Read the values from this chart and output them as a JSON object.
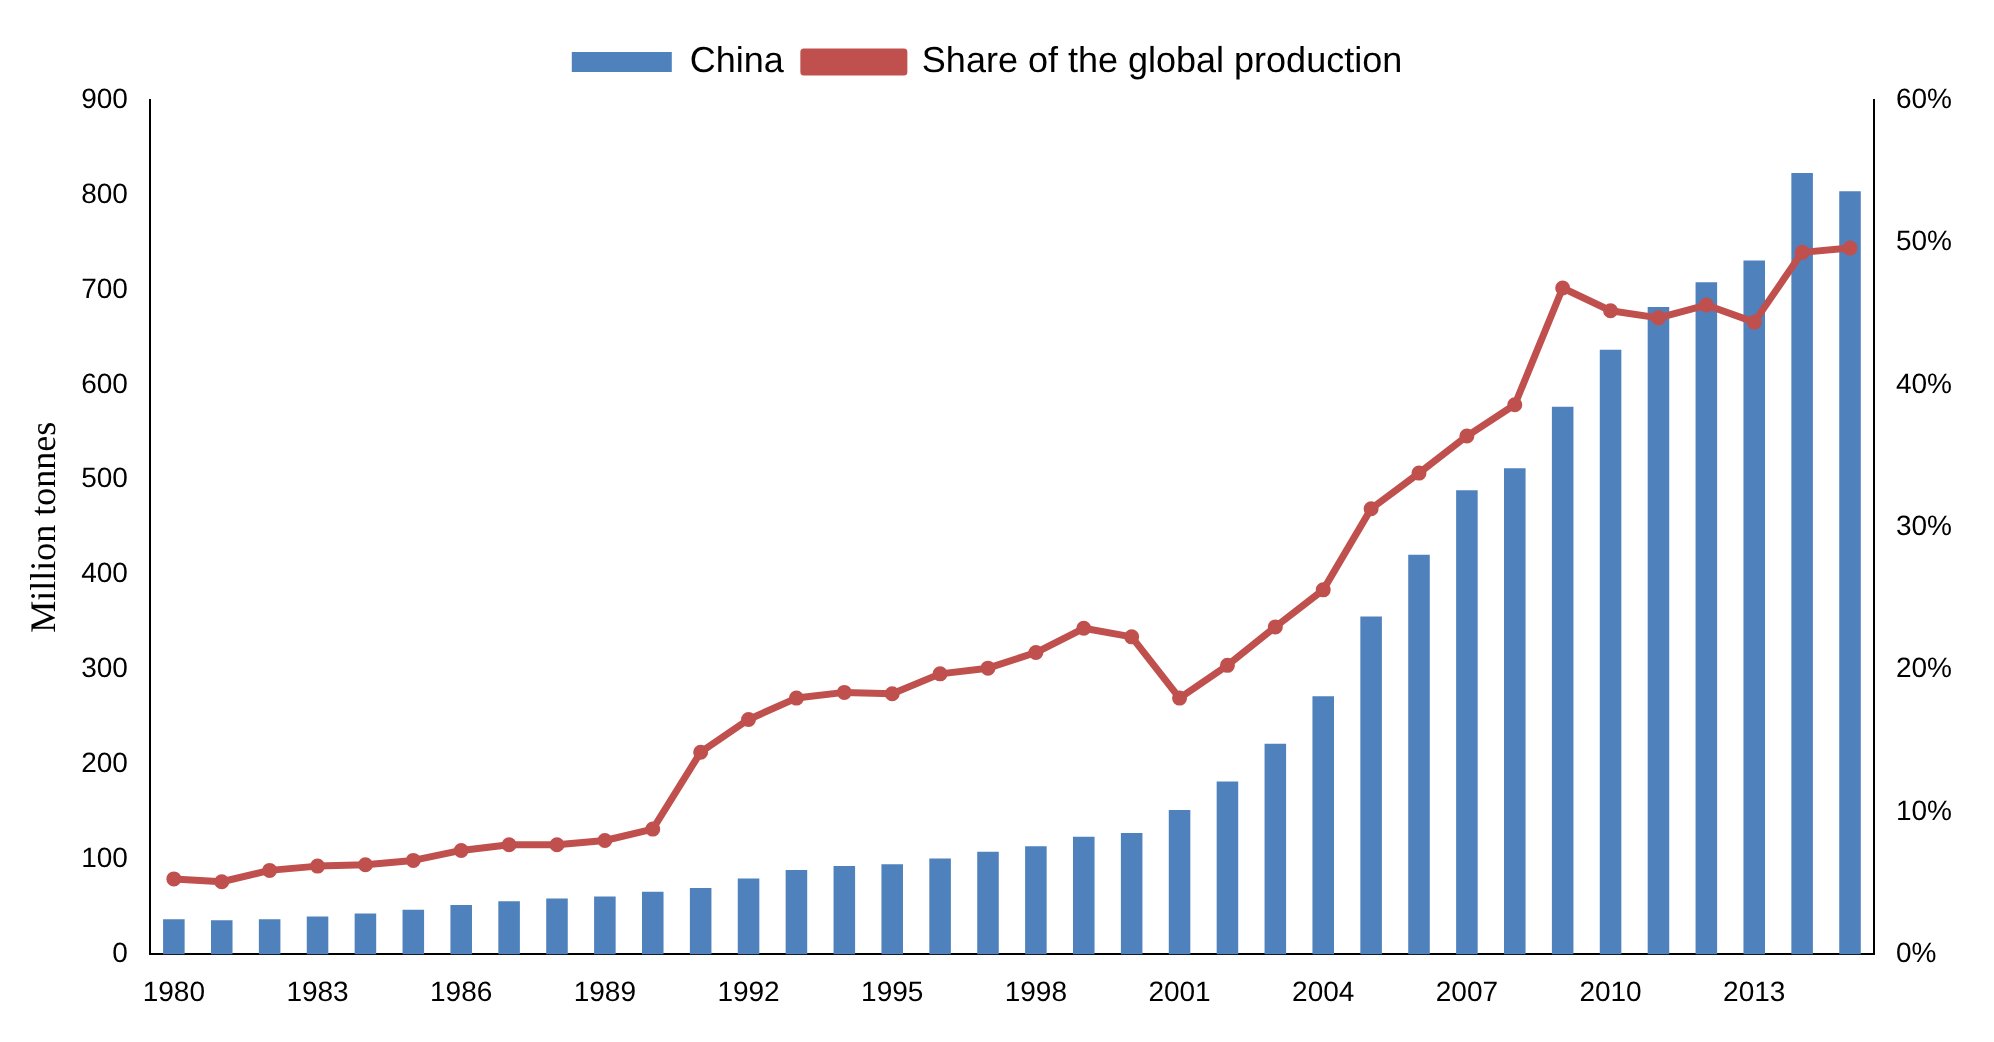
{
  "chart_data": {
    "type": "bar",
    "ylabel": "Million tonnes",
    "categories": [
      "1980",
      null,
      null,
      "1983",
      null,
      null,
      "1986",
      null,
      null,
      "1989",
      null,
      null,
      "1992",
      null,
      null,
      "1995",
      null,
      null,
      "1998",
      null,
      null,
      "2001",
      null,
      null,
      "2004",
      null,
      null,
      "2007",
      null,
      null,
      "2010",
      null,
      null,
      "2013",
      null,
      null
    ],
    "series": [
      {
        "name": "China",
        "color": "#4f81bd",
        "values": [
          37,
          36,
          37,
          40,
          43,
          47,
          52,
          56,
          59,
          61,
          66,
          70,
          80,
          89,
          93,
          95,
          101,
          108,
          114,
          124,
          128,
          152,
          182,
          222,
          272,
          356,
          421,
          489,
          512,
          577,
          637,
          682,
          708,
          731,
          823,
          804
        ]
      },
      {
        "name": "Share of the global production",
        "type": "line",
        "axis": "y2",
        "color": "#c0504d",
        "marker": "circle",
        "values": [
          5.3,
          5.1,
          5.9,
          6.2,
          6.3,
          6.6,
          7.3,
          7.7,
          7.7,
          8.0,
          8.8,
          14.2,
          16.5,
          18.0,
          18.4,
          18.3,
          19.7,
          20.1,
          21.2,
          22.9,
          22.3,
          18.0,
          20.3,
          23.0,
          25.6,
          31.3,
          33.8,
          36.4,
          38.6,
          46.8,
          45.2,
          44.7,
          45.6,
          44.4,
          49.3,
          49.6
        ]
      }
    ],
    "ylim": [
      0,
      900
    ],
    "yticks": [
      0,
      100,
      200,
      300,
      400,
      500,
      600,
      700,
      800,
      900
    ],
    "y2lim": [
      0,
      60
    ],
    "y2ticks": [
      {
        "value": 0,
        "label": "0%"
      },
      {
        "value": 10,
        "label": "10%"
      },
      {
        "value": 20,
        "label": "20%"
      },
      {
        "value": 30,
        "label": "30%"
      },
      {
        "value": 40,
        "label": "40%"
      },
      {
        "value": 50,
        "label": "50%"
      },
      {
        "value": 60,
        "label": "60%"
      }
    ],
    "legend": "top",
    "grid": false
  }
}
